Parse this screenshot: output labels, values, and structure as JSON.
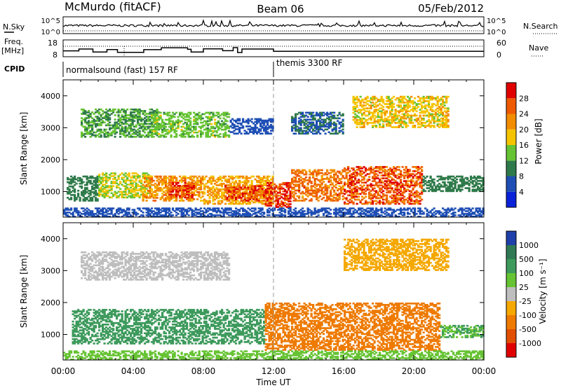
{
  "header": {
    "station": "McMurdo (fitACF)",
    "beam": "Beam 06",
    "date": "05/Feb/2012"
  },
  "strip_labels": {
    "nsky": "N.Sky",
    "freq": "Freq.",
    "freq_unit": "[MHz]",
    "cpid": "CPID",
    "nsearch": "N.Search",
    "nave": "Nave"
  },
  "cpid_segments": [
    {
      "label": "normalsound (fast) 157 RF",
      "start_hour": 0
    },
    {
      "label": "themis 3300 RF",
      "start_hour": 12
    }
  ],
  "chart_data": [
    {
      "type": "line",
      "name": "noise",
      "y_ticks_left": [
        "10^5",
        "10^0"
      ],
      "y_ticks_right": [
        "10^5",
        "10^0"
      ],
      "series_left": "N.Sky",
      "series_right": "N.Search"
    },
    {
      "type": "line",
      "name": "frequency-nave",
      "y_ticks_left": [
        "18",
        "8"
      ],
      "ylim_left": [
        8,
        18
      ],
      "y_ticks_right": [
        "60",
        "0"
      ],
      "ylim_right": [
        0,
        60
      ],
      "series_left": "Freq.",
      "series_right": "Nave",
      "freq_steps": [
        {
          "t": 0.0,
          "f": 11.5
        },
        {
          "t": 0.9,
          "f": 12.6
        },
        {
          "t": 1.7,
          "f": 10.8
        },
        {
          "t": 2.5,
          "f": 12.3
        },
        {
          "t": 3.1,
          "f": 10.6
        },
        {
          "t": 4.6,
          "f": 12.2
        },
        {
          "t": 5.6,
          "f": 13.3
        },
        {
          "t": 7.1,
          "f": 12.4
        },
        {
          "t": 7.3,
          "f": 10.8
        },
        {
          "t": 8.0,
          "f": 12.7
        },
        {
          "t": 9.1,
          "f": 11.6
        },
        {
          "t": 9.7,
          "f": 13.4
        },
        {
          "t": 9.95,
          "f": 10.5
        },
        {
          "t": 10.2,
          "f": 12.6
        },
        {
          "t": 12.0,
          "f": 11.2
        },
        {
          "t": 24.0,
          "f": 11.2
        }
      ]
    },
    {
      "type": "heatmap",
      "name": "power",
      "xlabel": "",
      "ylabel": "Slant Range [km]",
      "xlim": [
        0,
        24
      ],
      "ylim": [
        200,
        4500
      ],
      "y_ticks": [
        1000,
        2000,
        3000,
        4000
      ],
      "colorbar_label": "Power [dB]",
      "colorbar_ticks": [
        4,
        8,
        12,
        16,
        20,
        24,
        28
      ],
      "colorbar_range": [
        0,
        32
      ],
      "colorbar_colors": [
        "#0a23d8",
        "#1f4fb5",
        "#2f7a4a",
        "#66c333",
        "#f5c400",
        "#f28c00",
        "#ee5a00",
        "#e00000"
      ],
      "echo_regions": [
        {
          "t": [
            0.2,
            2.0
          ],
          "r": [
            700,
            1500
          ],
          "v": 10
        },
        {
          "t": [
            2.0,
            5.0
          ],
          "r": [
            800,
            1600
          ],
          "v": 16
        },
        {
          "t": [
            4.5,
            8.0
          ],
          "r": [
            700,
            1500
          ],
          "v": 22
        },
        {
          "t": [
            6.0,
            7.5
          ],
          "r": [
            800,
            1300
          ],
          "v": 28
        },
        {
          "t": [
            8.0,
            12.0
          ],
          "r": [
            600,
            1500
          ],
          "v": 20
        },
        {
          "t": [
            9.2,
            11.5
          ],
          "r": [
            700,
            1200
          ],
          "v": 27
        },
        {
          "t": [
            11.5,
            13.0
          ],
          "r": [
            500,
            1300
          ],
          "v": 28
        },
        {
          "t": [
            13.0,
            16.0
          ],
          "r": [
            700,
            1700
          ],
          "v": 24
        },
        {
          "t": [
            16.0,
            20.5
          ],
          "r": [
            600,
            1800
          ],
          "v": 26
        },
        {
          "t": [
            20.5,
            24.0
          ],
          "r": [
            1000,
            1500
          ],
          "v": 10
        },
        {
          "t": [
            1.0,
            5.5
          ],
          "r": [
            2700,
            3600
          ],
          "v": 12
        },
        {
          "t": [
            5.0,
            9.5
          ],
          "r": [
            2700,
            3500
          ],
          "v": 14
        },
        {
          "t": [
            9.5,
            12.0
          ],
          "r": [
            2800,
            3300
          ],
          "v": 6
        },
        {
          "t": [
            13.0,
            16.0
          ],
          "r": [
            2800,
            3500
          ],
          "v": 8
        },
        {
          "t": [
            16.5,
            22.0
          ],
          "r": [
            3000,
            4000
          ],
          "v": 18
        },
        {
          "t": [
            0.0,
            24.0
          ],
          "r": [
            200,
            500
          ],
          "v": 6
        }
      ]
    },
    {
      "type": "heatmap",
      "name": "velocity",
      "xlabel": "Time UT",
      "ylabel": "Slant Range [km]",
      "xlim": [
        0,
        24
      ],
      "x_ticks": [
        "00:00",
        "04:00",
        "08:00",
        "12:00",
        "16:00",
        "20:00",
        "00:00"
      ],
      "ylim": [
        200,
        4500
      ],
      "y_ticks": [
        1000,
        2000,
        3000,
        4000
      ],
      "colorbar_label": "Velocity [m s⁻¹]",
      "colorbar_ticks": [
        "1000",
        "500",
        "100",
        "25",
        "-25",
        "-100",
        "-500",
        "-1000"
      ],
      "colorbar_colors": [
        "#1f3faa",
        "#2f7a55",
        "#3d9a5c",
        "#66c333",
        "#bebebe",
        "#f5a800",
        "#ee7a00",
        "#e05000",
        "#e00000"
      ],
      "echo_regions": [
        {
          "t": [
            0.5,
            11.5
          ],
          "r": [
            700,
            1800
          ],
          "v": 300
        },
        {
          "t": [
            11.5,
            21.5
          ],
          "r": [
            500,
            2000
          ],
          "v": -300
        },
        {
          "t": [
            21.5,
            24.0
          ],
          "r": [
            900,
            1300
          ],
          "v": 100
        },
        {
          "t": [
            1.0,
            9.5
          ],
          "r": [
            2700,
            3600
          ],
          "v": 0
        },
        {
          "t": [
            16.0,
            22.0
          ],
          "r": [
            3000,
            4000
          ],
          "v": -60
        },
        {
          "t": [
            0.0,
            24.0
          ],
          "r": [
            200,
            500
          ],
          "v": 80
        }
      ]
    }
  ]
}
